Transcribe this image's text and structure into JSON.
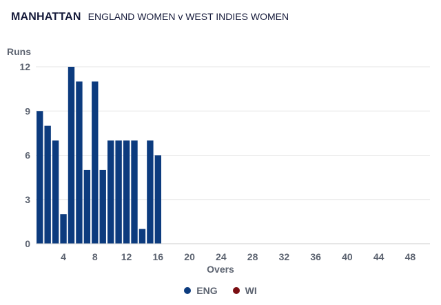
{
  "header": {
    "title": "MANHATTAN",
    "subtitle": "ENGLAND WOMEN v WEST INDIES WOMEN"
  },
  "chart_data": {
    "type": "bar",
    "ylabel": "Runs",
    "xlabel": "Overs",
    "ylim": [
      0,
      12
    ],
    "xlim": [
      0.5,
      50.5
    ],
    "yticks": [
      0,
      3,
      6,
      9,
      12
    ],
    "xticks": [
      4,
      8,
      12,
      16,
      20,
      24,
      28,
      32,
      36,
      40,
      44,
      48
    ],
    "grid": true,
    "legend_position": "bottom",
    "series": [
      {
        "name": "ENG",
        "color": "#0c3b7e",
        "overs": [
          1,
          2,
          3,
          4,
          5,
          6,
          7,
          8,
          9,
          10,
          11,
          12,
          13,
          14,
          15,
          16
        ],
        "values": [
          9,
          8,
          7,
          2,
          12,
          11,
          5,
          11,
          5,
          7,
          7,
          7,
          7,
          1,
          7,
          6
        ]
      },
      {
        "name": "WI",
        "color": "#7a0e12",
        "overs": [],
        "values": []
      }
    ]
  }
}
